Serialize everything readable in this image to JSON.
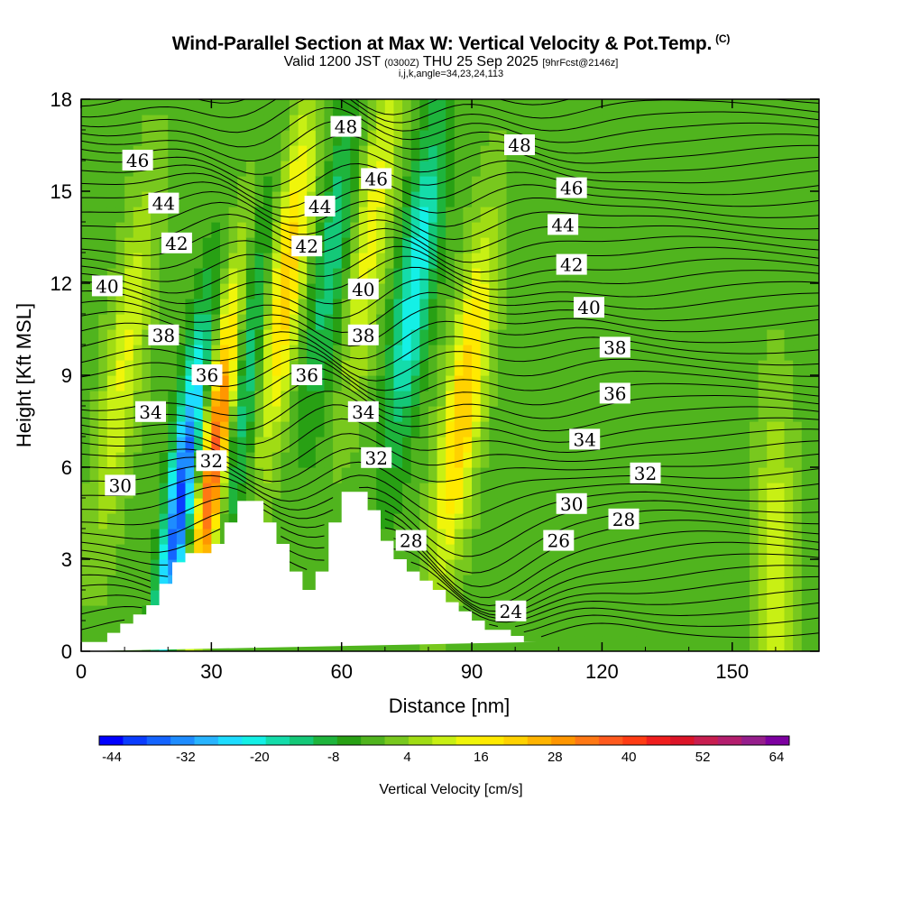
{
  "header": {
    "title": "Wind-Parallel Section at Max W: Vertical Velocity & Pot.Temp.",
    "copyright": "(C)",
    "valid_prefix": "Valid 1200 JST",
    "valid_utc": "(0300Z)",
    "valid_date": "THU 25 Sep 2025",
    "forecast": "[9hrFcst@2146z]",
    "indices": "i,j,k,angle=34,23,24,113"
  },
  "chart_data": {
    "type": "heatmap",
    "title": "Wind-Parallel Section at Max W: Vertical Velocity & Pot.Temp.",
    "xlabel": "Distance [nm]",
    "ylabel": "Height [Kft MSL]",
    "xlim": [
      0,
      170
    ],
    "ylim": [
      0,
      18
    ],
    "x_ticks": [
      0,
      30,
      60,
      90,
      120,
      150
    ],
    "y_ticks": [
      0,
      3,
      6,
      9,
      12,
      15,
      18
    ],
    "colorbar": {
      "label": "Vertical Velocity [cm/s]",
      "tick_labels": [
        "-44",
        "-32",
        "-20",
        "-8",
        "4",
        "16",
        "28",
        "40",
        "52",
        "64"
      ],
      "bounds": [
        -44,
        64
      ],
      "step": 4,
      "colors": [
        "#0000ff",
        "#0a3cff",
        "#1464ff",
        "#1e8cff",
        "#28b4ff",
        "#1edcff",
        "#14f0e6",
        "#14dcaa",
        "#14c878",
        "#1eb43c",
        "#28a014",
        "#50b41e",
        "#78c81e",
        "#a0dc14",
        "#c8f014",
        "#f0f50a",
        "#ffea00",
        "#ffd200",
        "#ffb400",
        "#ff9600",
        "#ff7814",
        "#ff5a1e",
        "#ff3c14",
        "#f01e1e",
        "#dc1428",
        "#c81e50",
        "#b41e6e",
        "#961e8c",
        "#7d00a0"
      ]
    },
    "terrain_profile": {
      "x_nm": [
        0,
        6,
        6,
        9,
        9,
        12,
        12,
        15,
        15,
        18,
        18,
        21,
        21,
        24,
        24,
        27,
        27,
        30,
        30,
        33,
        33,
        36,
        36,
        42,
        42,
        45,
        45,
        48,
        48,
        51,
        51,
        54,
        54,
        57,
        57,
        60,
        60,
        66,
        66,
        69,
        69,
        72,
        72,
        75,
        75,
        78,
        78,
        81,
        81,
        84,
        84,
        87,
        87,
        90,
        90,
        93,
        93,
        99,
        99,
        102,
        102,
        105,
        105,
        170
      ],
      "h_kft": [
        0.3,
        0.3,
        0.6,
        0.6,
        0.9,
        0.9,
        1.2,
        1.2,
        1.5,
        1.5,
        2.2,
        2.2,
        2.9,
        2.9,
        3.2,
        3.2,
        3.2,
        3.2,
        3.5,
        3.5,
        4.2,
        4.2,
        4.9,
        4.9,
        4.2,
        4.2,
        3.5,
        3.5,
        2.6,
        2.6,
        2.0,
        2.0,
        2.6,
        2.6,
        4.2,
        4.2,
        5.2,
        5.2,
        4.6,
        4.6,
        3.6,
        3.6,
        3.0,
        3.0,
        2.6,
        2.6,
        2.3,
        2.3,
        2.0,
        2.0,
        1.6,
        1.6,
        1.3,
        1.3,
        1.0,
        1.0,
        0.7,
        0.7,
        0.5,
        0.5,
        0.3,
        0.3
      ]
    },
    "vertical_velocity_features": [
      {
        "name": "western broad updraft",
        "x_nm": 10,
        "center_kft": 9.5,
        "w_cms": 14
      },
      {
        "name": "downdraft core",
        "x_nm": 23,
        "center_kft": 5.0,
        "w_cms": -40
      },
      {
        "name": "updraft core",
        "x_nm": 31,
        "center_kft": 6.5,
        "w_cms": 44
      },
      {
        "name": "downdraft",
        "x_nm": 38,
        "center_kft": 9.0,
        "w_cms": -18
      },
      {
        "name": "updraft",
        "x_nm": 47,
        "center_kft": 12.0,
        "w_cms": 26
      },
      {
        "name": "downdraft",
        "x_nm": 58,
        "center_kft": 13.0,
        "w_cms": -14
      },
      {
        "name": "updraft",
        "x_nm": 67,
        "center_kft": 14.0,
        "w_cms": 16
      },
      {
        "name": "downdraft",
        "x_nm": 77,
        "center_kft": 12.0,
        "w_cms": -22
      },
      {
        "name": "updraft",
        "x_nm": 88,
        "center_kft": 8.0,
        "w_cms": 26
      },
      {
        "name": "eastern weak updraft",
        "x_nm": 160,
        "center_kft": 2.5,
        "w_cms": 14
      }
    ],
    "contour_field": "Potential Temperature",
    "contour_labels": [
      {
        "text": "46",
        "x_nm": 13,
        "h_kft": 16.0
      },
      {
        "text": "44",
        "x_nm": 19,
        "h_kft": 14.6
      },
      {
        "text": "42",
        "x_nm": 22,
        "h_kft": 13.3
      },
      {
        "text": "40",
        "x_nm": 6,
        "h_kft": 11.9
      },
      {
        "text": "38",
        "x_nm": 19,
        "h_kft": 10.3
      },
      {
        "text": "36",
        "x_nm": 29,
        "h_kft": 9.0
      },
      {
        "text": "34",
        "x_nm": 16,
        "h_kft": 7.8
      },
      {
        "text": "32",
        "x_nm": 30,
        "h_kft": 6.2
      },
      {
        "text": "30",
        "x_nm": 9,
        "h_kft": 5.4
      },
      {
        "text": "48",
        "x_nm": 61,
        "h_kft": 17.1
      },
      {
        "text": "46",
        "x_nm": 68,
        "h_kft": 15.4
      },
      {
        "text": "44",
        "x_nm": 55,
        "h_kft": 14.5
      },
      {
        "text": "42",
        "x_nm": 52,
        "h_kft": 13.2
      },
      {
        "text": "40",
        "x_nm": 65,
        "h_kft": 11.8
      },
      {
        "text": "38",
        "x_nm": 65,
        "h_kft": 10.3
      },
      {
        "text": "36",
        "x_nm": 52,
        "h_kft": 9.0
      },
      {
        "text": "34",
        "x_nm": 65,
        "h_kft": 7.8
      },
      {
        "text": "32",
        "x_nm": 68,
        "h_kft": 6.3
      },
      {
        "text": "28",
        "x_nm": 76,
        "h_kft": 3.6
      },
      {
        "text": "24",
        "x_nm": 99,
        "h_kft": 1.3
      },
      {
        "text": "48",
        "x_nm": 101,
        "h_kft": 16.5
      },
      {
        "text": "46",
        "x_nm": 113,
        "h_kft": 15.1
      },
      {
        "text": "44",
        "x_nm": 111,
        "h_kft": 13.9
      },
      {
        "text": "42",
        "x_nm": 113,
        "h_kft": 12.6
      },
      {
        "text": "40",
        "x_nm": 117,
        "h_kft": 11.2
      },
      {
        "text": "38",
        "x_nm": 123,
        "h_kft": 9.9
      },
      {
        "text": "36",
        "x_nm": 123,
        "h_kft": 8.4
      },
      {
        "text": "34",
        "x_nm": 116,
        "h_kft": 6.9
      },
      {
        "text": "32",
        "x_nm": 130,
        "h_kft": 5.8
      },
      {
        "text": "30",
        "x_nm": 113,
        "h_kft": 4.8
      },
      {
        "text": "28",
        "x_nm": 125,
        "h_kft": 4.3
      },
      {
        "text": "26",
        "x_nm": 110,
        "h_kft": 3.6
      }
    ]
  }
}
